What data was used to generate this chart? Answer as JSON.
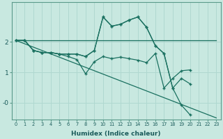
{
  "background_color": "#c8e8e0",
  "grid_color": "#b0d8d0",
  "line_color": "#1a7060",
  "xlabel": "Humidex (Indice chaleur)",
  "x_ticks": [
    0,
    1,
    2,
    3,
    4,
    5,
    6,
    7,
    8,
    9,
    10,
    11,
    12,
    13,
    14,
    15,
    16,
    17,
    18,
    19,
    20,
    21,
    22,
    23
  ],
  "ylim": [
    -0.55,
    3.3
  ],
  "yticks": [
    0.0,
    1.0,
    2.0
  ],
  "ytick_labels": [
    "-0",
    "1",
    "2"
  ],
  "line_flat": {
    "x": [
      0,
      23
    ],
    "y": [
      2.05,
      2.05
    ]
  },
  "line_diagonal": {
    "x": [
      0,
      23
    ],
    "y": [
      2.05,
      -0.5
    ]
  },
  "line_middle": {
    "x": [
      0,
      1,
      2,
      3,
      4,
      5,
      6,
      7,
      8,
      9,
      10,
      11,
      12,
      13,
      14,
      15,
      16,
      17,
      18,
      19,
      20
    ],
    "y": [
      2.05,
      2.05,
      1.72,
      1.65,
      1.65,
      1.6,
      1.52,
      1.42,
      0.95,
      1.35,
      1.52,
      1.45,
      1.5,
      1.45,
      1.4,
      1.32,
      1.62,
      0.48,
      0.8,
      1.05,
      1.08
    ]
  },
  "line_peak": {
    "x": [
      0,
      1,
      2,
      3,
      4,
      5,
      6,
      7,
      8,
      9,
      10,
      11,
      12,
      13,
      14,
      15,
      16,
      17,
      18,
      19,
      20
    ],
    "y": [
      2.05,
      2.05,
      1.72,
      1.65,
      1.65,
      1.6,
      1.6,
      1.6,
      1.52,
      1.72,
      2.82,
      2.52,
      2.58,
      2.72,
      2.82,
      2.48,
      1.88,
      1.62,
      0.48,
      0.8,
      0.62
    ]
  },
  "line_drop": {
    "x": [
      0,
      1,
      2,
      3,
      4,
      5,
      6,
      7,
      8,
      9,
      10,
      11,
      12,
      13,
      14,
      15,
      16,
      17,
      18,
      19,
      20
    ],
    "y": [
      2.05,
      2.05,
      1.72,
      1.65,
      1.65,
      1.6,
      1.6,
      1.6,
      1.52,
      1.72,
      2.82,
      2.52,
      2.58,
      2.72,
      2.82,
      2.48,
      1.88,
      1.62,
      0.48,
      -0.08,
      -0.4
    ]
  }
}
